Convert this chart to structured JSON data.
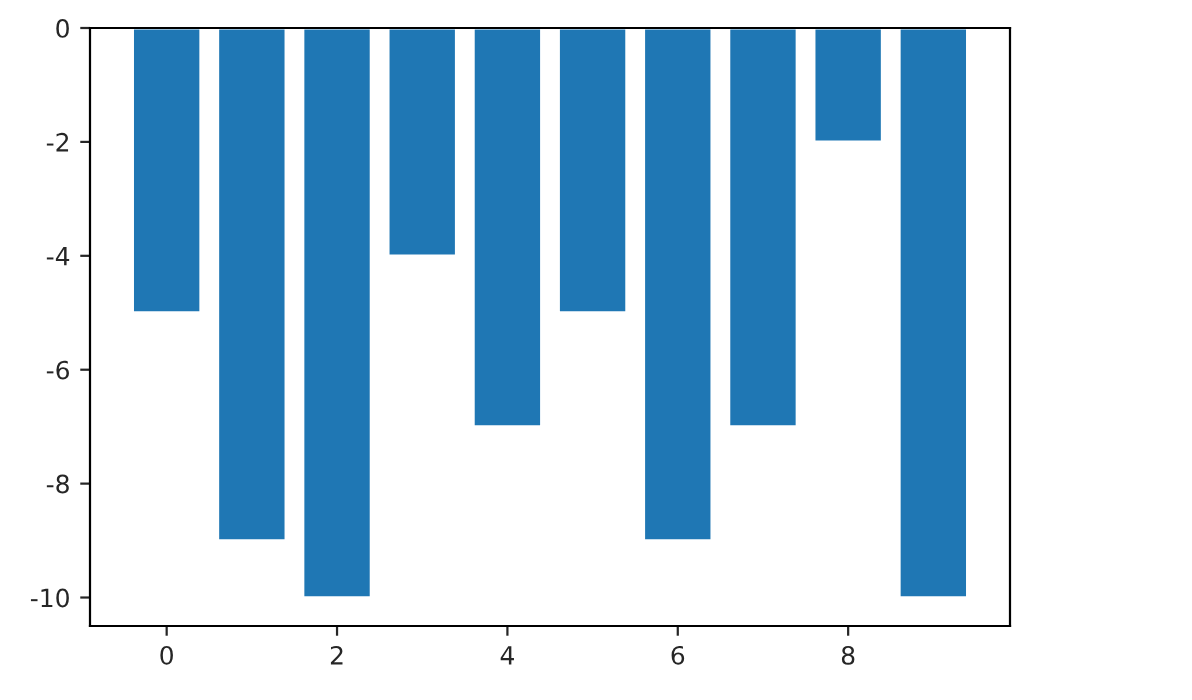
{
  "chart_data": {
    "type": "bar",
    "x": [
      0,
      1,
      2,
      3,
      4,
      5,
      6,
      7,
      8,
      9
    ],
    "values": [
      -5,
      -9,
      -10,
      -4,
      -7,
      -5,
      -9,
      -7,
      -2,
      -10
    ],
    "color": "#1f77b4",
    "xlim": [
      -0.9,
      9.9
    ],
    "xticks": [
      0,
      2,
      4,
      6,
      8
    ],
    "ylim": [
      -10.5,
      0
    ],
    "yticks": [
      -10,
      -8,
      -6,
      -4,
      -2,
      0
    ],
    "grid": false
  }
}
